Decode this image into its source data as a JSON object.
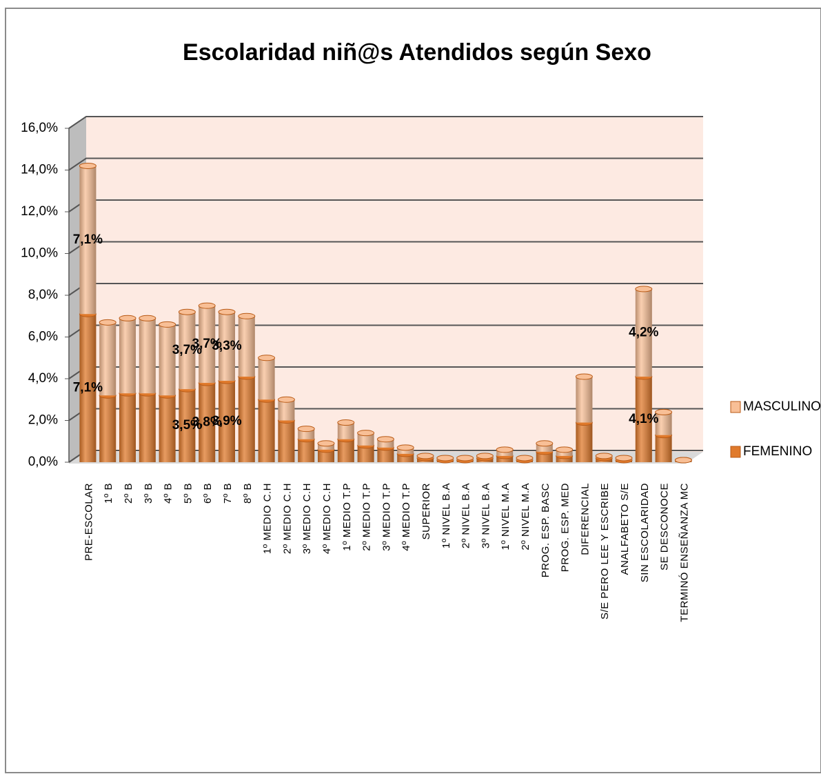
{
  "chart_data": {
    "type": "bar",
    "stacked": true,
    "title": "Escolaridad niñ@s Atendidos según Sexo",
    "categories": [
      "PRE-ESCOLAR",
      "1º B",
      "2º B",
      "3º B",
      "4º B",
      "5º B",
      "6º B",
      "7º B",
      "8º B",
      "1º MEDIO C.H",
      "2º MEDIO C.H",
      "3º MEDIO C.H",
      "4º MEDIO C.H",
      "1º MEDIO  T.P",
      "2º MEDIO  T.P",
      "3º MEDIO  T.P",
      "4º MEDIO  T.P",
      "SUPERIOR",
      "1º NIVEL  B.A",
      "2º NIVEL  B.A",
      "3º NIVEL  B.A",
      "1º NIVEL  M.A",
      "2º NIVEL  M.A",
      "PROG. ESP. BASC",
      "PROG. ESP. MED",
      "DIFERENCIAL",
      "S/E PERO LEE Y ESCRIBE",
      "ANALFABETO S/E",
      "SIN ESCOLARIDAD",
      "SE DESCONOCE",
      "TERMINÓ  ENSEÑANZA  MC"
    ],
    "series": [
      {
        "name": "FEMENINO",
        "color": "#e07a2c",
        "values": [
          7.1,
          3.2,
          3.3,
          3.3,
          3.2,
          3.5,
          3.8,
          3.9,
          4.1,
          3.0,
          2.0,
          1.1,
          0.6,
          1.1,
          0.8,
          0.7,
          0.4,
          0.2,
          0.1,
          0.1,
          0.2,
          0.3,
          0.1,
          0.5,
          0.3,
          1.9,
          0.2,
          0.1,
          4.1,
          1.3,
          0.1
        ],
        "value_labels": [
          "7,1%",
          null,
          null,
          null,
          null,
          "3,5%",
          "3,8%",
          "3,9%",
          null,
          null,
          null,
          null,
          null,
          null,
          null,
          null,
          null,
          null,
          null,
          null,
          null,
          null,
          null,
          null,
          null,
          null,
          null,
          null,
          "4,1%",
          null,
          null
        ]
      },
      {
        "name": "MASCULINO",
        "color": "#f8bf96",
        "values": [
          7.1,
          3.5,
          3.6,
          3.6,
          3.4,
          3.7,
          3.7,
          3.3,
          2.9,
          2.0,
          1.0,
          0.5,
          0.3,
          0.8,
          0.6,
          0.4,
          0.3,
          0.1,
          0.1,
          0.1,
          0.1,
          0.3,
          0.1,
          0.4,
          0.3,
          2.2,
          0.1,
          0.1,
          4.2,
          1.1,
          0.0
        ],
        "value_labels": [
          "7,1%",
          null,
          null,
          null,
          null,
          "3,7%",
          "3,7%",
          "3,3%",
          null,
          null,
          null,
          null,
          null,
          null,
          null,
          null,
          null,
          null,
          null,
          null,
          null,
          null,
          null,
          null,
          null,
          null,
          null,
          null,
          "4,2%",
          null,
          null
        ]
      }
    ],
    "ylim": [
      0,
      16
    ],
    "yticks": [
      {
        "value": 0,
        "label": "0,0%"
      },
      {
        "value": 2,
        "label": "2,0%"
      },
      {
        "value": 4,
        "label": "4,0%"
      },
      {
        "value": 6,
        "label": "6,0%"
      },
      {
        "value": 8,
        "label": "8,0%"
      },
      {
        "value": 10,
        "label": "10,0%"
      },
      {
        "value": 12,
        "label": "12,0%"
      },
      {
        "value": 14,
        "label": "14,0%"
      },
      {
        "value": 16,
        "label": "16,0%"
      }
    ],
    "grid": true,
    "legend": "right"
  }
}
